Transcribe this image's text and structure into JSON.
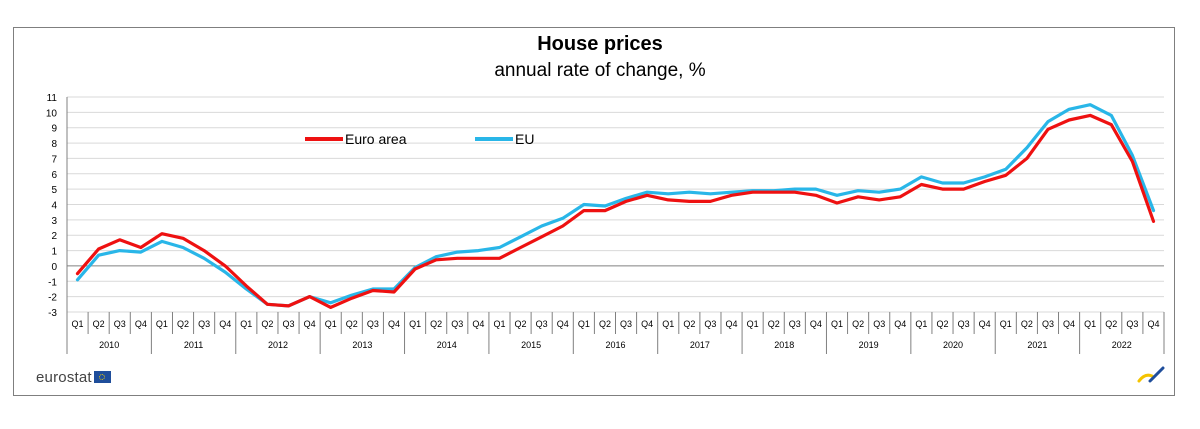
{
  "title": "House prices",
  "subtitle": "annual rate of change, %",
  "logo_text": "eurostat",
  "colors": {
    "euro_area": "#ee1111",
    "eu": "#29b6e8",
    "grid": "#d9d9d9",
    "axis": "#808080"
  },
  "chart_data": {
    "type": "line",
    "title": "House prices",
    "subtitle": "annual rate of change, %",
    "xlabel": "",
    "ylabel": "",
    "ylim": [
      -3,
      11
    ],
    "yticks": [
      11,
      10,
      9,
      8,
      7,
      6,
      5,
      4,
      3,
      2,
      1,
      0,
      -1,
      -2,
      -3
    ],
    "grid": true,
    "legend": "top-left",
    "quarters": [
      "Q1",
      "Q2",
      "Q3",
      "Q4"
    ],
    "years": [
      "2010",
      "2011",
      "2012",
      "2013",
      "2014",
      "2015",
      "2016",
      "2017",
      "2018",
      "2019",
      "2020",
      "2021",
      "2022"
    ],
    "series": [
      {
        "name": "Euro area",
        "color": "#ee1111",
        "values": [
          -0.5,
          1.1,
          1.7,
          1.2,
          2.1,
          1.8,
          1.0,
          0.0,
          -1.3,
          -2.5,
          -2.6,
          -2.0,
          -2.7,
          -2.1,
          -1.6,
          -1.7,
          -0.2,
          0.4,
          0.5,
          0.5,
          0.5,
          1.2,
          1.9,
          2.6,
          3.6,
          3.6,
          4.2,
          4.6,
          4.3,
          4.2,
          4.2,
          4.6,
          4.8,
          4.8,
          4.8,
          4.6,
          4.1,
          4.5,
          4.3,
          4.5,
          5.3,
          5.0,
          5.0,
          5.5,
          5.9,
          7.0,
          8.9,
          9.5,
          9.8,
          9.2,
          6.8,
          2.9
        ]
      },
      {
        "name": "EU",
        "color": "#29b6e8",
        "values": [
          -0.9,
          0.7,
          1.0,
          0.9,
          1.6,
          1.2,
          0.5,
          -0.4,
          -1.5,
          -2.5,
          -2.6,
          -2.0,
          -2.4,
          -1.9,
          -1.5,
          -1.5,
          -0.1,
          0.6,
          0.9,
          1.0,
          1.2,
          1.9,
          2.6,
          3.1,
          4.0,
          3.9,
          4.4,
          4.8,
          4.7,
          4.8,
          4.7,
          4.8,
          4.9,
          4.9,
          5.0,
          5.0,
          4.6,
          4.9,
          4.8,
          5.0,
          5.8,
          5.4,
          5.4,
          5.8,
          6.3,
          7.7,
          9.4,
          10.2,
          10.5,
          9.8,
          7.2,
          3.6
        ]
      }
    ]
  }
}
